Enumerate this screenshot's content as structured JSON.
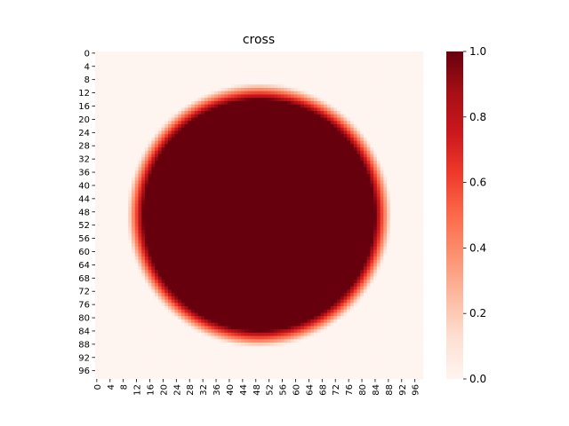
{
  "chart_data": {
    "type": "heatmap",
    "title": "cross",
    "xlabel": "",
    "ylabel": "",
    "grid": false,
    "rows": 99,
    "cols": 99,
    "x_tick_labels": [
      "0",
      "4",
      "8",
      "12",
      "16",
      "20",
      "24",
      "28",
      "32",
      "36",
      "40",
      "44",
      "48",
      "52",
      "56",
      "60",
      "64",
      "68",
      "72",
      "76",
      "80",
      "84",
      "88",
      "92",
      "96"
    ],
    "y_tick_labels": [
      "0",
      "4",
      "8",
      "12",
      "16",
      "20",
      "24",
      "28",
      "32",
      "36",
      "40",
      "44",
      "48",
      "52",
      "56",
      "60",
      "64",
      "68",
      "72",
      "76",
      "80",
      "84",
      "88",
      "92",
      "96"
    ],
    "colormap": "Reds",
    "colormap_stops": [
      "#fff5f0",
      "#fee0d2",
      "#fcbba1",
      "#fc9272",
      "#fb6a4a",
      "#ef3b2c",
      "#cb181d",
      "#a50f15",
      "#67000d"
    ],
    "value_range": [
      0.0,
      1.0
    ],
    "colorbar_ticks": [
      "0.0",
      "0.2",
      "0.4",
      "0.6",
      "0.8",
      "1.0"
    ],
    "pattern": {
      "shape": "disk",
      "center_col": 49,
      "center_row": 49,
      "radius_cols": 40,
      "radius_rows": 40,
      "edge_softness": 5,
      "inside_value": 1.0,
      "outside_value": 0.0
    }
  }
}
